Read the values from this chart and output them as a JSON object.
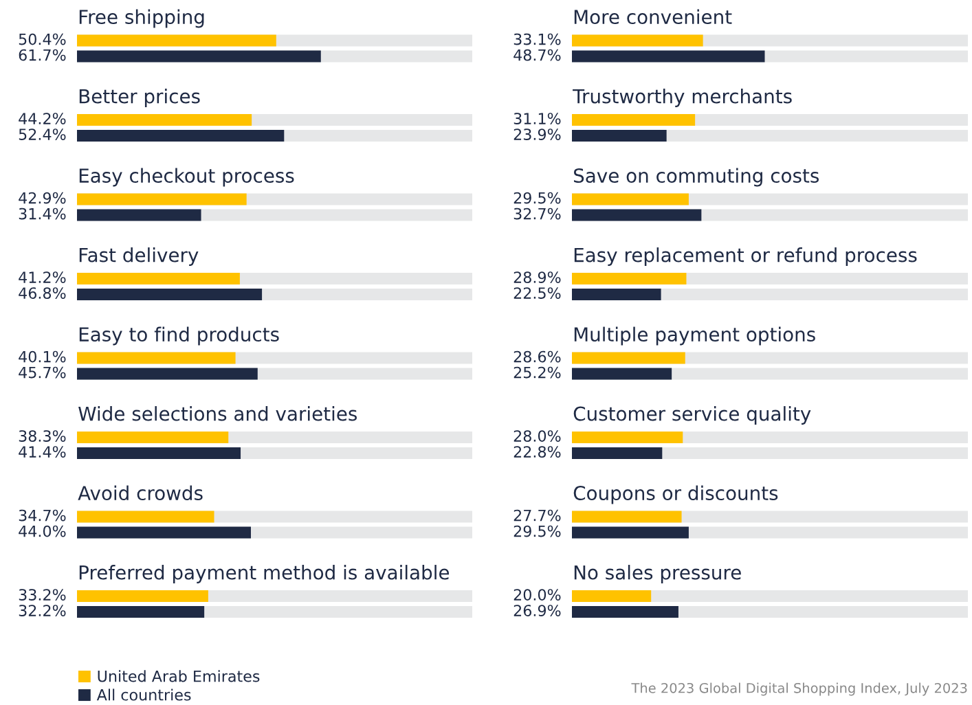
{
  "chart_data": [
    {
      "type": "bar",
      "orientation": "horizontal",
      "xlim": [
        0,
        100
      ],
      "tick_labels": false,
      "legend": "bottom",
      "categories": [
        "Free shipping",
        "Better prices",
        "Easy checkout process",
        "Fast delivery",
        "Easy to find products",
        "Wide selections and varieties",
        "Avoid crowds",
        "Preferred payment method is available"
      ],
      "series": [
        {
          "name": "United Arab Emirates",
          "color": "#ffc200",
          "values": [
            50.4,
            44.2,
            42.9,
            41.2,
            40.1,
            38.3,
            34.7,
            33.2
          ],
          "value_labels": [
            "50.4%",
            "44.2%",
            "42.9%",
            "41.2%",
            "40.1%",
            "38.3%",
            "34.7%",
            "33.2%"
          ]
        },
        {
          "name": "All countries",
          "color": "#1f2a44",
          "values": [
            61.7,
            52.4,
            31.4,
            46.8,
            45.7,
            41.4,
            44.0,
            32.2
          ],
          "value_labels": [
            "61.7%",
            "52.4%",
            "31.4%",
            "46.8%",
            "45.7%",
            "41.4%",
            "44.0%",
            "32.2%"
          ]
        }
      ]
    },
    {
      "type": "bar",
      "orientation": "horizontal",
      "xlim": [
        0,
        100
      ],
      "tick_labels": false,
      "categories": [
        "More convenient",
        "Trustworthy merchants",
        "Save on commuting costs",
        "Easy replacement or refund process",
        "Multiple payment options",
        "Customer service quality",
        "Coupons or discounts",
        "No sales pressure"
      ],
      "series": [
        {
          "color": "#ffc200",
          "values": [
            33.1,
            31.1,
            29.5,
            28.9,
            28.6,
            28.0,
            27.7,
            20.0
          ],
          "value_labels": [
            "33.1%",
            "31.1%",
            "29.5%",
            "28.9%",
            "28.6%",
            "28.0%",
            "27.7%",
            "20.0%"
          ]
        },
        {
          "color": "#1f2a44",
          "values": [
            48.7,
            23.9,
            32.7,
            22.5,
            25.2,
            22.8,
            29.5,
            26.9
          ],
          "value_labels": [
            "48.7%",
            "23.9%",
            "32.7%",
            "22.5%",
            "25.2%",
            "22.8%",
            "29.5%",
            "26.9%"
          ]
        }
      ],
      "annotations": [
        "The 2023 Global Digital Shopping Index, July 2023"
      ]
    }
  ]
}
